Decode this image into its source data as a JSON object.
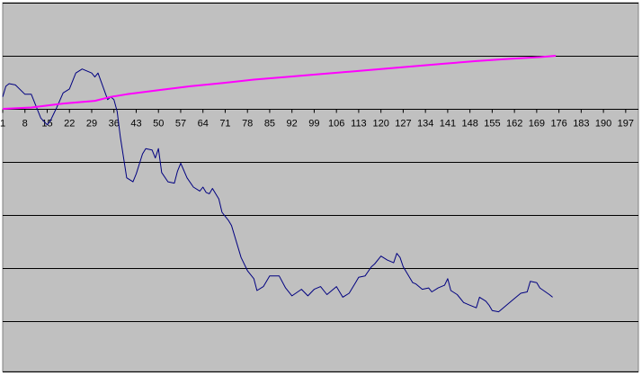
{
  "chart_data": {
    "type": "line",
    "grid": true,
    "legend": "none",
    "colors": {
      "plot_background": "#c0c0c0",
      "gridline": "#000000",
      "series_blue": "#000080",
      "series_magenta": "#ff00ff"
    },
    "x_tick_labels": [
      "1",
      "8",
      "15",
      "22",
      "29",
      "36",
      "43",
      "50",
      "57",
      "64",
      "71",
      "78",
      "85",
      "92",
      "99",
      "106",
      "113",
      "120",
      "127",
      "134",
      "141",
      "148",
      "155",
      "162",
      "169",
      "176",
      "183",
      "190",
      "197"
    ],
    "series": [
      {
        "color_key": "series_blue",
        "x": [
          1,
          2,
          3,
          5,
          8,
          10,
          13,
          15,
          16,
          18,
          20,
          22,
          24,
          26,
          29,
          30,
          31,
          34,
          35,
          36,
          37,
          38,
          40,
          42,
          43,
          45,
          46,
          48,
          49,
          50,
          51,
          53,
          55,
          56,
          57,
          59,
          61,
          63,
          64,
          65,
          66,
          67,
          69,
          70,
          71,
          72,
          73,
          76,
          78,
          80,
          81,
          83,
          85,
          88,
          90,
          92,
          95,
          97,
          99,
          101,
          103,
          106,
          108,
          110,
          112,
          113,
          115,
          117,
          118,
          120,
          122,
          124,
          125,
          126,
          127,
          128,
          130,
          131,
          133,
          135,
          136,
          138,
          140,
          141,
          142,
          144,
          146,
          148,
          150,
          151,
          153,
          154,
          155,
          157,
          158,
          160,
          162,
          164,
          166,
          167,
          169,
          170,
          173,
          174
        ],
        "y": [
          0.45,
          0.85,
          0.95,
          0.9,
          0.55,
          0.55,
          -0.35,
          -0.6,
          -0.45,
          0.05,
          0.6,
          0.75,
          1.35,
          1.5,
          1.35,
          1.2,
          1.35,
          0.35,
          0.45,
          0.35,
          -0.1,
          -1.05,
          -2.6,
          -2.75,
          -2.45,
          -1.7,
          -1.5,
          -1.55,
          -1.85,
          -1.5,
          -2.4,
          -2.75,
          -2.8,
          -2.35,
          -2.05,
          -2.6,
          -2.95,
          -3.1,
          -2.95,
          -3.15,
          -3.2,
          -3.0,
          -3.4,
          -3.9,
          -4.05,
          -4.2,
          -4.4,
          -5.6,
          -6.1,
          -6.4,
          -6.85,
          -6.7,
          -6.3,
          -6.3,
          -6.75,
          -7.05,
          -6.8,
          -7.05,
          -6.8,
          -6.7,
          -7.0,
          -6.7,
          -7.1,
          -6.95,
          -6.55,
          -6.35,
          -6.3,
          -5.95,
          -5.85,
          -5.55,
          -5.7,
          -5.8,
          -5.45,
          -5.6,
          -5.95,
          -6.15,
          -6.55,
          -6.6,
          -6.8,
          -6.75,
          -6.9,
          -6.75,
          -6.65,
          -6.4,
          -6.85,
          -7.0,
          -7.3,
          -7.4,
          -7.5,
          -7.1,
          -7.25,
          -7.4,
          -7.6,
          -7.65,
          -7.55,
          -7.35,
          -7.15,
          -6.95,
          -6.9,
          -6.5,
          -6.55,
          -6.75,
          -7.0,
          -7.1
        ]
      },
      {
        "color_key": "series_magenta",
        "x": [
          1,
          10,
          20,
          30,
          35,
          40,
          50,
          60,
          70,
          80,
          90,
          100,
          110,
          120,
          130,
          140,
          150,
          160,
          170,
          175
        ],
        "y": [
          0,
          0.05,
          0.2,
          0.3,
          0.45,
          0.55,
          0.7,
          0.85,
          0.97,
          1.1,
          1.2,
          1.3,
          1.4,
          1.5,
          1.6,
          1.7,
          1.8,
          1.88,
          1.95,
          2.0
        ]
      }
    ],
    "xlim": [
      1,
      201
    ],
    "ylim": [
      -9.9,
      4.0
    ],
    "gridlines_y": [
      4.0,
      2.0,
      0,
      -2.0,
      -4.0,
      -6.0,
      -8.0,
      -9.9
    ]
  }
}
